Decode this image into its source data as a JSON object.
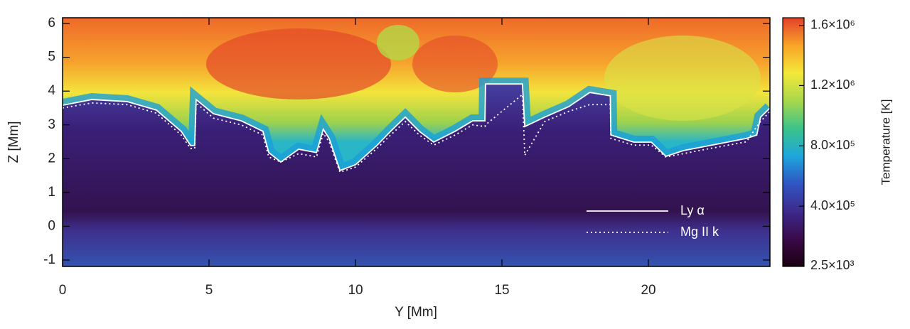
{
  "chart_data": {
    "type": "line",
    "xlabel": "Y [Mm]",
    "ylabel": "Z [Mm]",
    "colorbar_label": "Temperature [K]",
    "xlim": [
      0,
      24.15
    ],
    "ylim": [
      -1.19,
      6.17
    ],
    "xticks": [
      0,
      5,
      10,
      15,
      20
    ],
    "yticks": [
      -1,
      0,
      1,
      2,
      3,
      4,
      5,
      6
    ],
    "clim": [
      0,
      1650000
    ],
    "cticks": [
      {
        "value": 2500,
        "label": "2.5×10³"
      },
      {
        "value": 400000,
        "label": "4.0×10⁵"
      },
      {
        "value": 800000,
        "label": "8.0×10⁵"
      },
      {
        "value": 1200000,
        "label": "1.2×10⁶"
      },
      {
        "value": 1600000,
        "label": "1.6×10⁶"
      }
    ],
    "colormap": [
      "#1a0010",
      "#3a0a4a",
      "#3d2a8c",
      "#2f56c4",
      "#1ea6dc",
      "#3cc38a",
      "#a8d84a",
      "#f4e83a",
      "#f9a428",
      "#e2402a"
    ],
    "legend": "lower right",
    "x": [
      0,
      1.0,
      2.2,
      3.2,
      4.05,
      4.37,
      4.51,
      4.56,
      5.15,
      6.1,
      6.84,
      7.04,
      7.45,
      8.06,
      8.67,
      8.9,
      9.1,
      9.47,
      10.0,
      10.73,
      11.2,
      11.7,
      12.18,
      12.67,
      13.4,
      14.0,
      14.42,
      14.44,
      15.7,
      15.78,
      16.46,
      17.28,
      18.0,
      18.7,
      18.72,
      19.5,
      20.1,
      20.6,
      21.2,
      22.1,
      23.35,
      23.7,
      23.83,
      24.15
    ],
    "series": [
      {
        "name": "Ly α",
        "color": "#ffffff",
        "style": "solid",
        "values": [
          3.58,
          3.75,
          3.69,
          3.44,
          2.81,
          2.39,
          2.39,
          3.75,
          3.33,
          3.12,
          2.81,
          2.18,
          1.9,
          2.28,
          2.18,
          2.87,
          2.6,
          1.65,
          1.82,
          2.39,
          2.81,
          3.23,
          2.81,
          2.49,
          2.81,
          3.12,
          3.12,
          4.21,
          4.21,
          2.95,
          3.23,
          3.54,
          3.96,
          3.86,
          2.7,
          2.49,
          2.49,
          2.07,
          2.24,
          2.39,
          2.6,
          2.7,
          3.23,
          3.5
        ]
      },
      {
        "name": "Mg II k",
        "color": "#ffffff",
        "style": "dotted",
        "values": [
          3.5,
          3.65,
          3.6,
          3.35,
          2.7,
          2.3,
          2.3,
          3.65,
          3.2,
          3.0,
          2.7,
          2.05,
          1.9,
          2.15,
          2.05,
          2.75,
          2.5,
          1.6,
          1.75,
          2.3,
          2.7,
          3.1,
          2.7,
          2.4,
          2.7,
          3.0,
          2.95,
          3.0,
          3.9,
          2.1,
          3.1,
          3.4,
          3.6,
          3.6,
          2.6,
          2.4,
          2.4,
          2.05,
          2.15,
          2.3,
          2.5,
          2.95,
          3.1,
          3.4
        ]
      }
    ]
  }
}
